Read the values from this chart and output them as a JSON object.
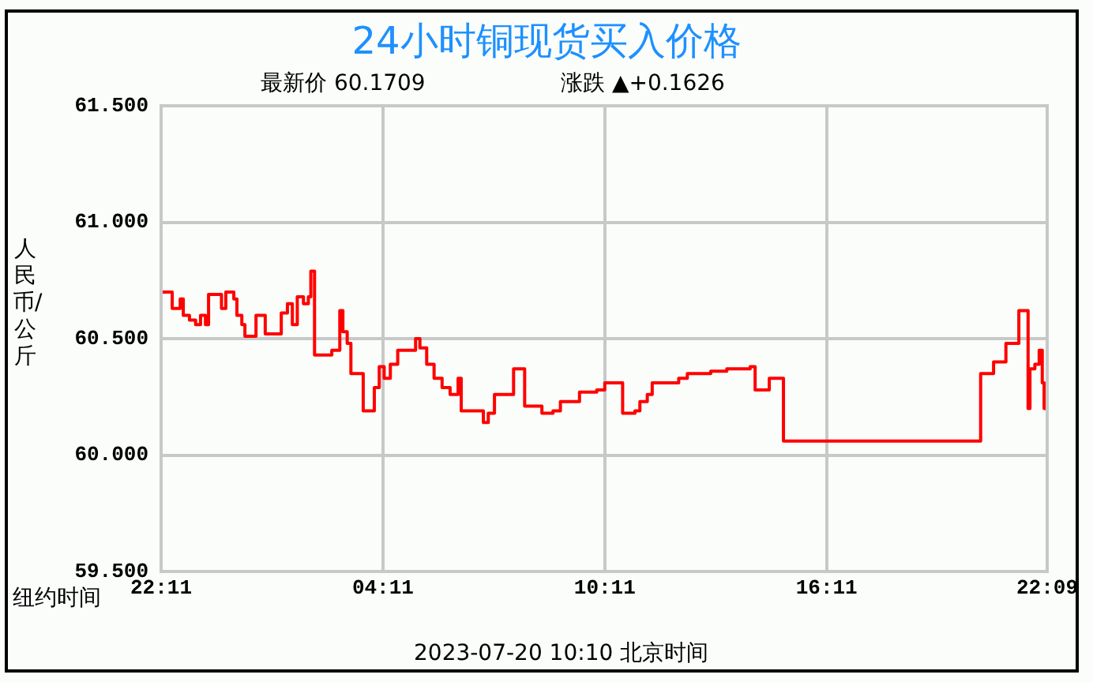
{
  "chart_data": {
    "type": "step",
    "title": "24小时铜现货买入价格",
    "ylabel": "人民币/公斤",
    "annotations": [
      "最新价 60.1709",
      "涨跌 ▲+0.1626",
      "纽约时间",
      "2023-07-20 10:10 北京时间"
    ],
    "xlim": [
      "2023-07-18T22:11",
      "2023-07-19T22:09"
    ],
    "xticks": [
      {
        "value": "2023-07-18T22:11",
        "label": "22:11"
      },
      {
        "value": "2023-07-19T04:11",
        "label": "04:11"
      },
      {
        "value": "2023-07-19T10:11",
        "label": "10:11"
      },
      {
        "value": "2023-07-19T16:11",
        "label": "16:11"
      },
      {
        "value": "2023-07-19T22:09",
        "label": "22:09"
      }
    ],
    "ylim": [
      59.5,
      61.5
    ],
    "yticks": [
      {
        "value": 59.5,
        "label": "59.500"
      },
      {
        "value": 60,
        "label": "60.000"
      },
      {
        "value": 60.5,
        "label": "60.500"
      },
      {
        "value": 61,
        "label": "61.000"
      },
      {
        "value": 61.5,
        "label": "61.500"
      }
    ],
    "grid": true,
    "legend": false,
    "marker": "none",
    "line_style": "solid",
    "x": [
      "2023-07-18T22:11",
      "2023-07-18T22:26",
      "2023-07-18T22:29",
      "2023-07-18T22:39",
      "2023-07-18T22:42",
      "2023-07-18T22:47",
      "2023-07-18T22:57",
      "2023-07-18T23:07",
      "2023-07-18T23:15",
      "2023-07-18T23:23",
      "2023-07-18T23:28",
      "2023-07-18T23:35",
      "2023-07-18T23:49",
      "2023-07-18T23:56",
      "2023-07-19T00:09",
      "2023-07-19T00:14",
      "2023-07-19T00:22",
      "2023-07-19T00:27",
      "2023-07-19T00:40",
      "2023-07-19T00:45",
      "2023-07-19T00:55",
      "2023-07-19T01:00",
      "2023-07-19T01:18",
      "2023-07-19T01:26",
      "2023-07-19T01:36",
      "2023-07-19T01:44",
      "2023-07-19T01:52",
      "2023-07-19T02:02",
      "2023-07-19T02:10",
      "2023-07-19T02:14",
      "2023-07-19T02:20",
      "2023-07-19T02:48",
      "2023-07-19T03:01",
      "2023-07-19T03:06",
      "2023-07-19T03:13",
      "2023-07-19T03:19",
      "2023-07-19T03:34",
      "2023-07-19T03:39",
      "2023-07-19T03:55",
      "2023-07-19T03:57",
      "2023-07-19T04:05",
      "2023-07-19T04:13",
      "2023-07-19T04:23",
      "2023-07-19T04:35",
      "2023-07-19T05:04",
      "2023-07-19T05:11",
      "2023-07-19T05:22",
      "2023-07-19T05:34",
      "2023-07-19T05:47",
      "2023-07-19T06:00",
      "2023-07-19T06:13",
      "2023-07-19T06:18",
      "2023-07-19T06:38",
      "2023-07-19T06:54",
      "2023-07-19T07:02",
      "2023-07-19T07:12",
      "2023-07-19T07:37",
      "2023-07-19T07:43",
      "2023-07-19T07:55",
      "2023-07-19T08:01",
      "2023-07-19T08:21",
      "2023-07-19T08:29",
      "2023-07-19T08:47",
      "2023-07-19T08:59",
      "2023-07-19T09:25",
      "2023-07-19T09:30",
      "2023-07-19T09:51",
      "2023-07-19T09:58",
      "2023-07-19T10:11",
      "2023-07-19T10:34",
      "2023-07-19T10:40",
      "2023-07-19T11:00",
      "2023-07-19T11:08",
      "2023-07-19T11:20",
      "2023-07-19T11:28",
      "2023-07-19T12:11",
      "2023-07-19T12:25",
      "2023-07-19T13:03",
      "2023-07-19T13:29",
      "2023-07-19T14:07",
      "2023-07-19T14:15",
      "2023-07-19T14:32",
      "2023-07-19T14:38",
      "2023-07-19T14:58",
      "2023-07-19T15:01",
      "2023-07-19T20:19",
      "2023-07-19T20:21",
      "2023-07-19T20:37",
      "2023-07-19T20:42",
      "2023-07-19T20:57",
      "2023-07-19T21:02",
      "2023-07-19T21:17",
      "2023-07-19T21:23",
      "2023-07-19T21:35",
      "2023-07-19T21:38",
      "2023-07-19T21:41",
      "2023-07-19T21:49",
      "2023-07-19T21:56",
      "2023-07-19T22:01",
      "2023-07-19T22:04",
      "2023-07-19T22:09"
    ],
    "series": [
      {
        "color": "#ff0000",
        "values": [
          60.7,
          60.7,
          60.63,
          60.63,
          60.67,
          60.6,
          60.58,
          60.56,
          60.6,
          60.56,
          60.69,
          60.69,
          60.63,
          60.7,
          60.67,
          60.6,
          60.56,
          60.51,
          60.51,
          60.6,
          60.6,
          60.52,
          60.52,
          60.61,
          60.65,
          60.56,
          60.68,
          60.65,
          60.68,
          60.79,
          60.43,
          60.45,
          60.62,
          60.53,
          60.48,
          60.35,
          60.35,
          60.19,
          60.19,
          60.29,
          60.38,
          60.33,
          60.39,
          60.45,
          60.5,
          60.46,
          60.39,
          60.33,
          60.29,
          60.26,
          60.33,
          60.19,
          60.19,
          60.14,
          60.18,
          60.26,
          60.26,
          60.37,
          60.37,
          60.21,
          60.21,
          60.18,
          60.19,
          60.23,
          60.23,
          60.27,
          60.27,
          60.28,
          60.31,
          60.31,
          60.18,
          60.19,
          60.23,
          60.26,
          60.31,
          60.33,
          60.35,
          60.36,
          60.37,
          60.38,
          60.28,
          60.28,
          60.33,
          60.33,
          60.06,
          60.06,
          60.35,
          60.35,
          60.4,
          60.4,
          60.48,
          60.48,
          60.62,
          60.62,
          60.2,
          60.37,
          60.39,
          60.45,
          60.31,
          60.2,
          60.17
        ]
      }
    ]
  }
}
